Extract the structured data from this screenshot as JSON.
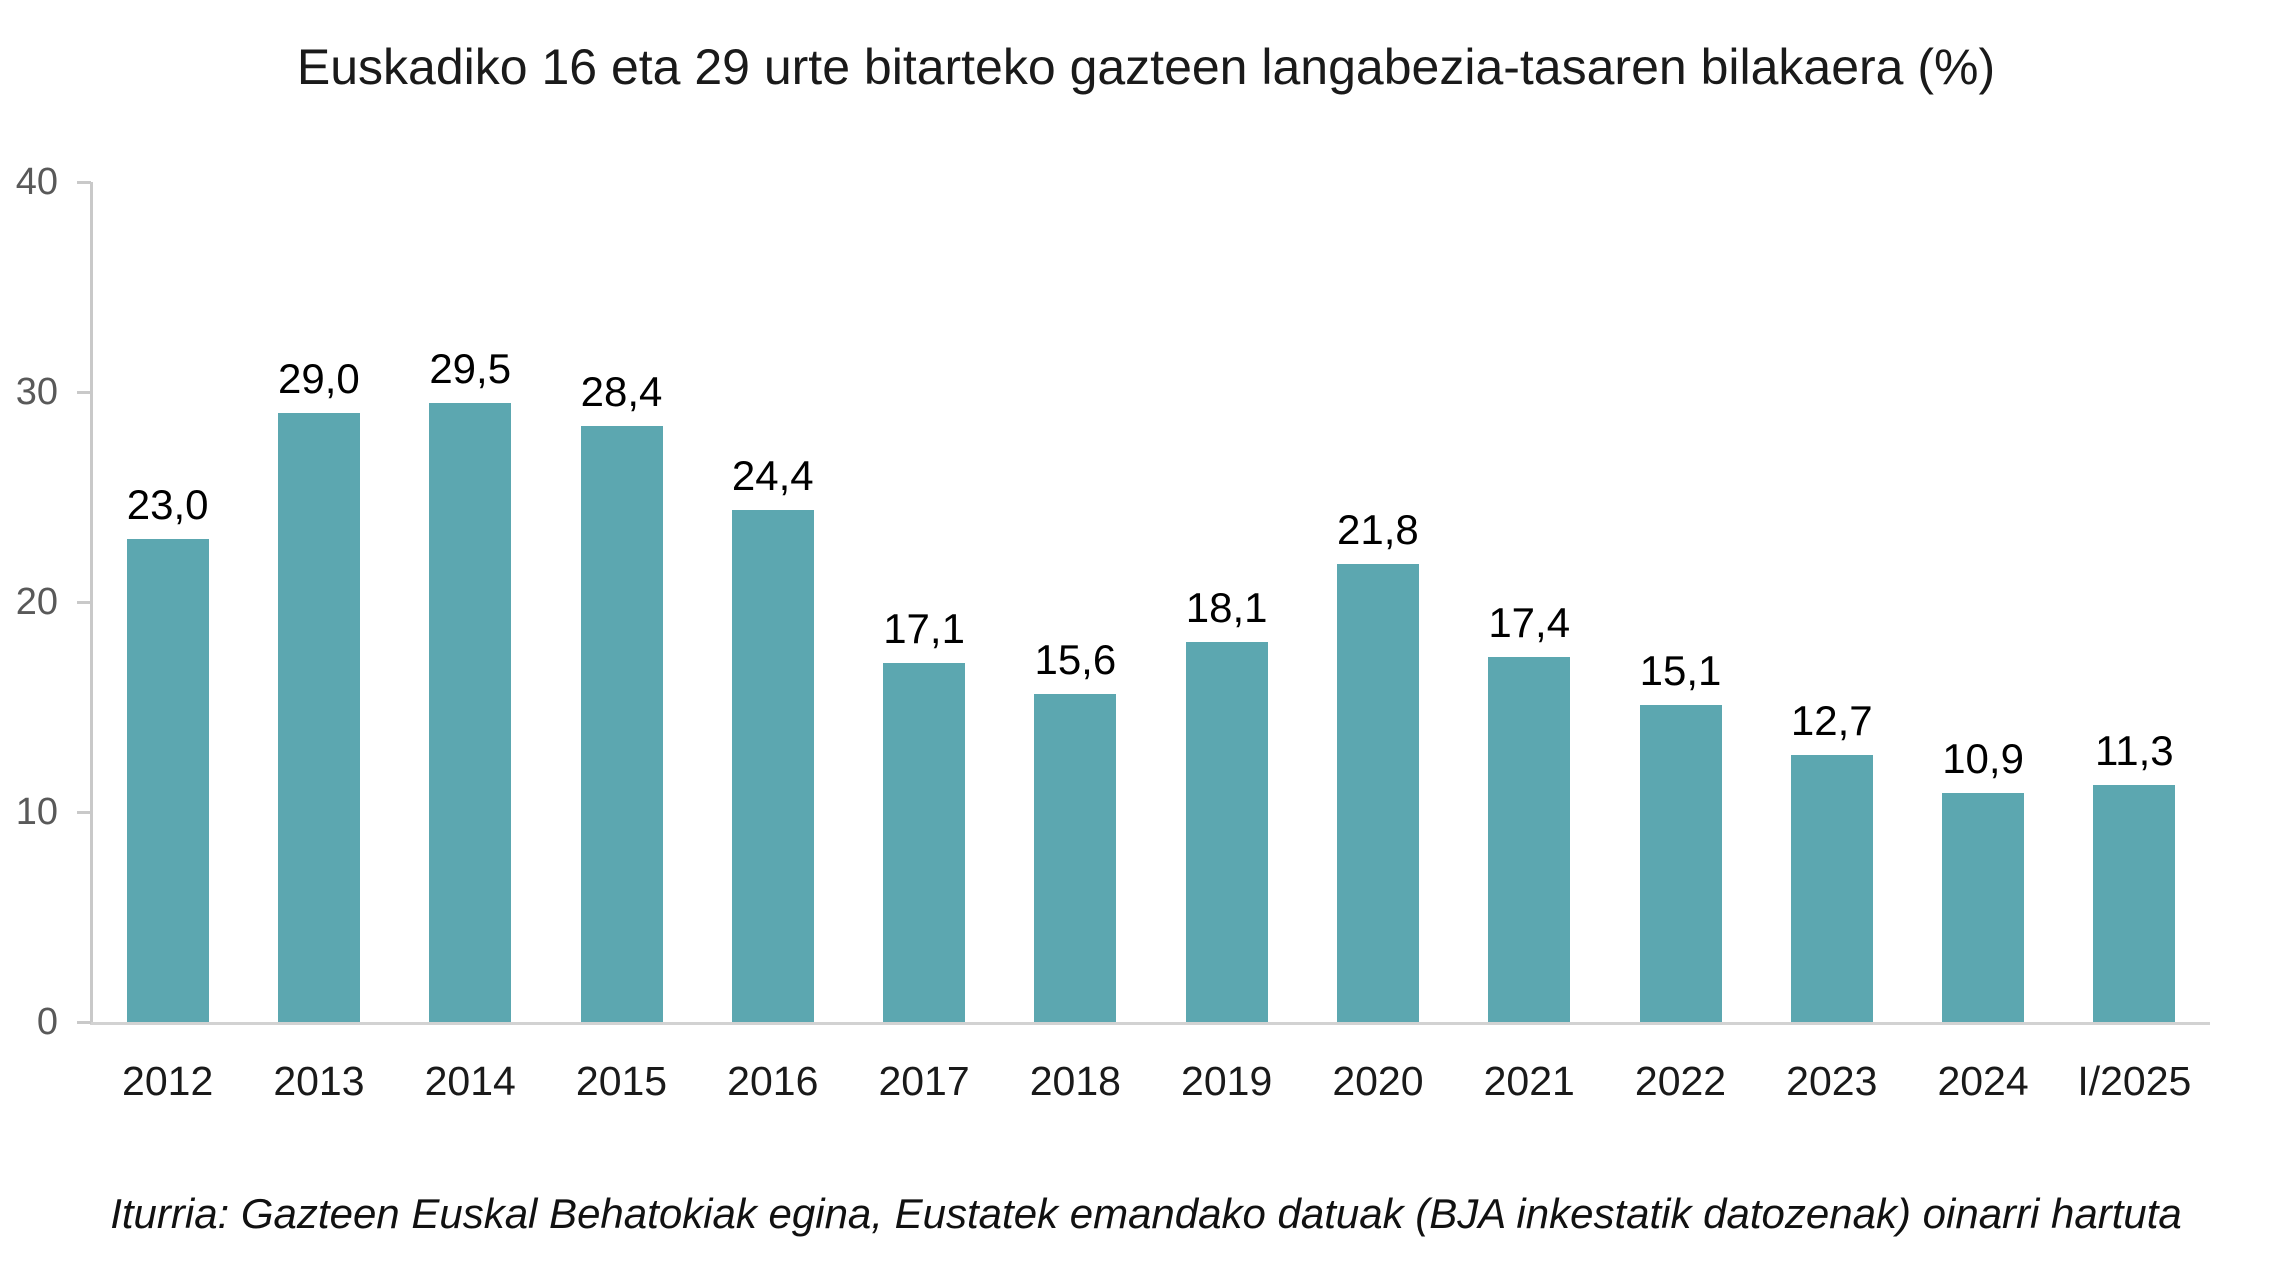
{
  "title": "Euskadiko 16 eta 29 urte bitarteko gazteen langabezia-tasaren bilakaera (%)",
  "source_note": "Iturria: Gazteen Euskal Behatokiak egina, Eustatek emandako datuak (BJA inkestatik datozenak) oinarri hartuta",
  "chart_data": {
    "type": "bar",
    "title": "Euskadiko 16 eta 29 urte bitarteko gazteen langabezia-tasaren bilakaera (%)",
    "categories": [
      "2012",
      "2013",
      "2014",
      "2015",
      "2016",
      "2017",
      "2018",
      "2019",
      "2020",
      "2021",
      "2022",
      "2023",
      "2024",
      "I/2025"
    ],
    "values": [
      23.0,
      29.0,
      29.5,
      28.4,
      24.4,
      17.1,
      15.6,
      18.1,
      21.8,
      17.4,
      15.1,
      12.7,
      10.9,
      11.3
    ],
    "data_labels": [
      "23,0",
      "29,0",
      "29,5",
      "28,4",
      "24,4",
      "17,1",
      "15,6",
      "18,1",
      "21,8",
      "17,4",
      "15,1",
      "12,7",
      "10,9",
      "11,3"
    ],
    "xlabel": "",
    "ylabel": "",
    "ylim": [
      0,
      40
    ],
    "yticks": [
      0,
      10,
      20,
      30,
      40
    ],
    "grid": false,
    "legend": false,
    "colors": {
      "bar": "#5ca7b0",
      "axis_line": "#c9c9c9",
      "ytick_label": "#595959",
      "xtick_label": "#1a1a1a",
      "value_label": "#000000"
    }
  }
}
